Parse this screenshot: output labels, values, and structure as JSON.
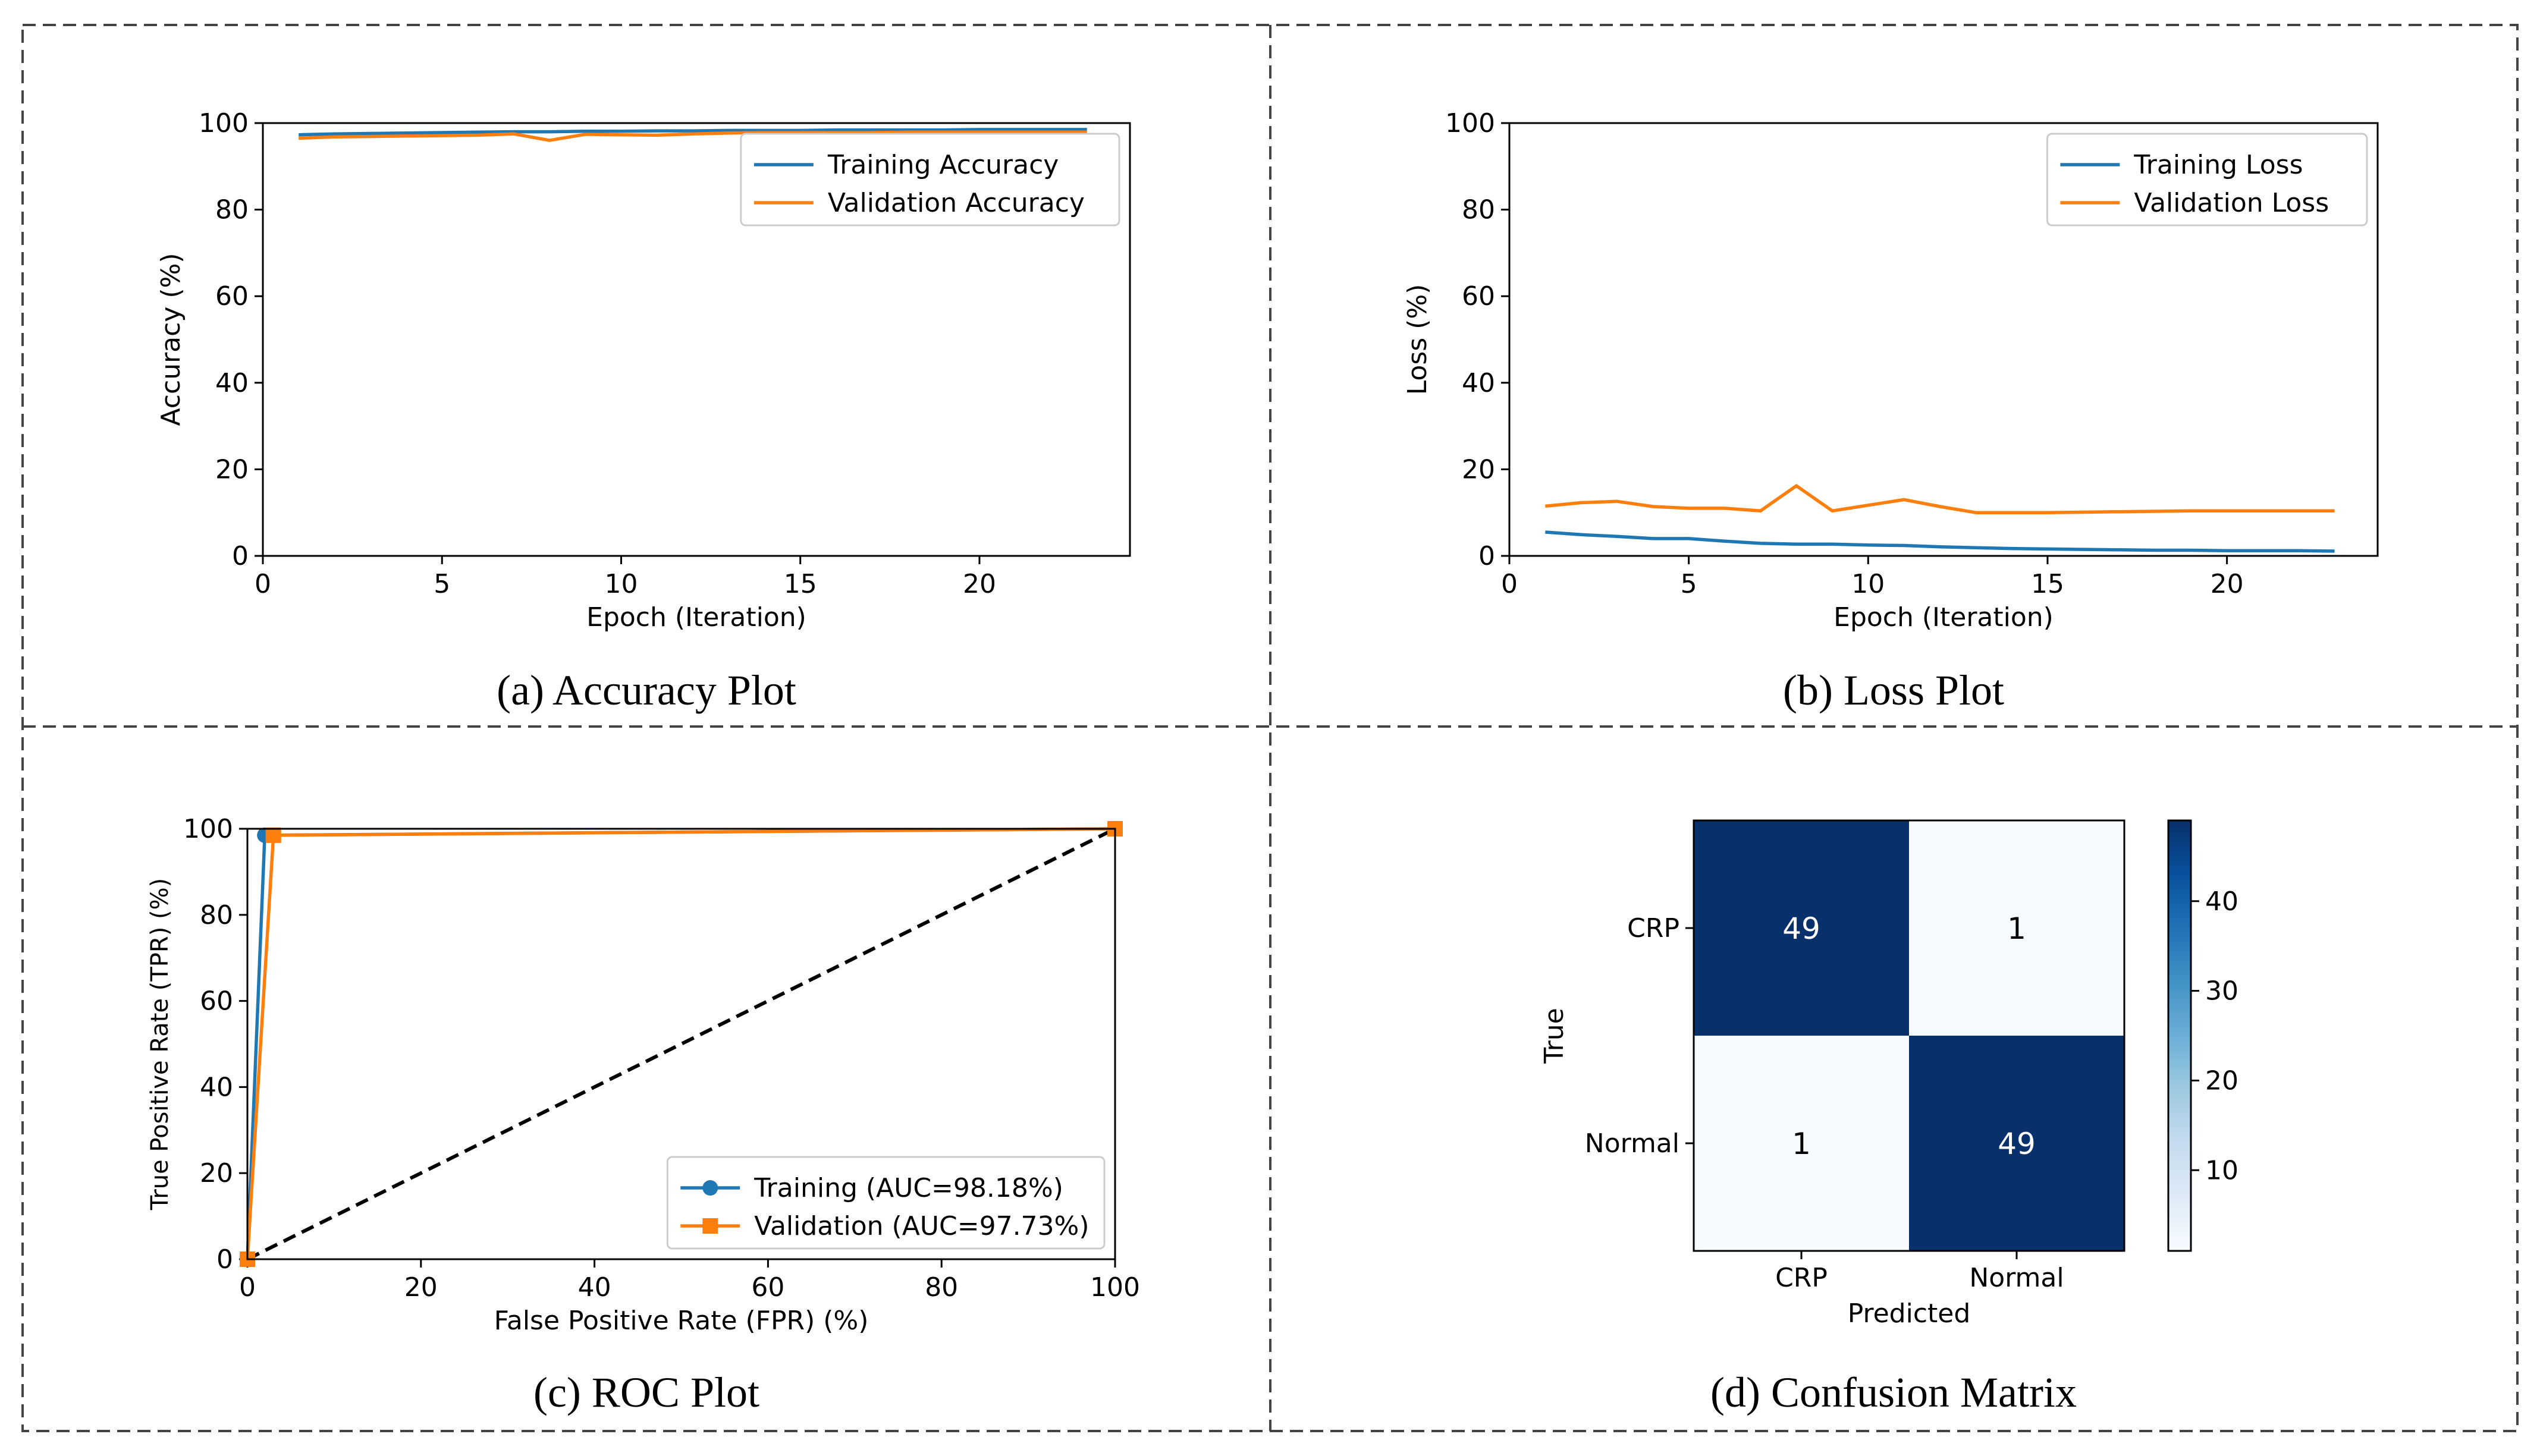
{
  "colors": {
    "blue": "#1f77b4",
    "orange": "#ff7f0e",
    "cm_dark": "#08306b",
    "cm_light": "#f7fbff",
    "border": "#444444"
  },
  "chart_data": [
    {
      "id": "accuracy",
      "type": "line",
      "caption": "(a) Accuracy Plot",
      "xlabel": "Epoch (Iteration)",
      "ylabel": "Accuracy (%)",
      "xlim": [
        0,
        24.2
      ],
      "ylim": [
        0,
        100
      ],
      "xticks": [
        0,
        5,
        10,
        15,
        20
      ],
      "yticks": [
        0,
        20,
        40,
        60,
        80,
        100
      ],
      "legend": "upper-right",
      "series": [
        {
          "name": "Training Accuracy",
          "color": "blue",
          "x": [
            1,
            2,
            3,
            4,
            5,
            6,
            7,
            8,
            9,
            10,
            11,
            12,
            13,
            14,
            15,
            16,
            17,
            18,
            19,
            20,
            21,
            22,
            23
          ],
          "y": [
            97.3,
            97.5,
            97.6,
            97.7,
            97.8,
            97.9,
            98.0,
            98.0,
            98.1,
            98.1,
            98.2,
            98.2,
            98.3,
            98.3,
            98.3,
            98.4,
            98.4,
            98.4,
            98.4,
            98.5,
            98.5,
            98.5,
            98.5
          ]
        },
        {
          "name": "Validation Accuracy",
          "color": "orange",
          "x": [
            1,
            2,
            3,
            4,
            5,
            6,
            7,
            8,
            9,
            10,
            11,
            12,
            13,
            14,
            15,
            16,
            17,
            18,
            19,
            20,
            21,
            22,
            23
          ],
          "y": [
            96.5,
            96.8,
            96.9,
            97.0,
            97.1,
            97.2,
            97.5,
            96.0,
            97.4,
            97.3,
            97.2,
            97.5,
            97.7,
            97.8,
            97.8,
            97.8,
            97.8,
            97.9,
            97.9,
            97.9,
            97.9,
            97.9,
            97.9
          ]
        }
      ]
    },
    {
      "id": "loss",
      "type": "line",
      "caption": "(b) Loss Plot",
      "xlabel": "Epoch (Iteration)",
      "ylabel": "Loss (%)",
      "xlim": [
        0,
        24.2
      ],
      "ylim": [
        0,
        100
      ],
      "xticks": [
        0,
        5,
        10,
        15,
        20
      ],
      "yticks": [
        0,
        20,
        40,
        60,
        80,
        100
      ],
      "legend": "upper-right",
      "series": [
        {
          "name": "Training Loss",
          "color": "blue",
          "x": [
            1,
            2,
            3,
            4,
            5,
            6,
            7,
            8,
            9,
            10,
            11,
            12,
            13,
            14,
            15,
            16,
            17,
            18,
            19,
            20,
            21,
            22,
            23
          ],
          "y": [
            5.5,
            4.9,
            4.5,
            4.0,
            4.0,
            3.4,
            2.9,
            2.7,
            2.7,
            2.5,
            2.4,
            2.1,
            1.9,
            1.7,
            1.6,
            1.5,
            1.4,
            1.3,
            1.3,
            1.2,
            1.2,
            1.2,
            1.1
          ]
        },
        {
          "name": "Validation Loss",
          "color": "orange",
          "x": [
            1,
            2,
            3,
            4,
            5,
            6,
            7,
            8,
            9,
            10,
            11,
            12,
            13,
            14,
            15,
            16,
            17,
            18,
            19,
            20,
            21,
            22,
            23
          ],
          "y": [
            11.5,
            12.3,
            12.6,
            11.4,
            11.0,
            11.0,
            10.4,
            16.2,
            10.4,
            11.7,
            13.0,
            11.4,
            10.0,
            10.0,
            10.0,
            10.1,
            10.2,
            10.3,
            10.4,
            10.4,
            10.4,
            10.4,
            10.4
          ]
        }
      ]
    },
    {
      "id": "roc",
      "type": "line",
      "caption": "(c) ROC Plot",
      "xlabel": "False Positive Rate (FPR) (%)",
      "ylabel": "True Positive Rate (TPR) (%)",
      "xlim": [
        0,
        100
      ],
      "ylim": [
        0,
        100
      ],
      "xticks": [
        0,
        20,
        40,
        60,
        80,
        100
      ],
      "yticks": [
        0,
        20,
        40,
        60,
        80,
        100
      ],
      "legend": "lower-right",
      "series": [
        {
          "name": "Training (AUC=98.18%)",
          "color": "blue",
          "marker": "circle",
          "x": [
            0,
            2,
            100
          ],
          "y": [
            0,
            98.5,
            100
          ]
        },
        {
          "name": "Validation (AUC=97.73%)",
          "color": "orange",
          "marker": "square",
          "x": [
            0,
            3,
            100
          ],
          "y": [
            0,
            98.5,
            100
          ]
        }
      ],
      "diagonal": {
        "x": [
          0,
          100
        ],
        "y": [
          0,
          100
        ],
        "style": "dashed"
      }
    },
    {
      "id": "confusion",
      "type": "heatmap",
      "caption": "(d) Confusion Matrix",
      "xlabel": "Predicted",
      "ylabel": "True",
      "row_labels": [
        "CRP",
        "Normal"
      ],
      "col_labels": [
        "CRP",
        "Normal"
      ],
      "values": [
        [
          49,
          1
        ],
        [
          1,
          49
        ]
      ],
      "vmin": 1,
      "vmax": 49,
      "colorbar_ticks": [
        10,
        20,
        30,
        40
      ]
    }
  ]
}
